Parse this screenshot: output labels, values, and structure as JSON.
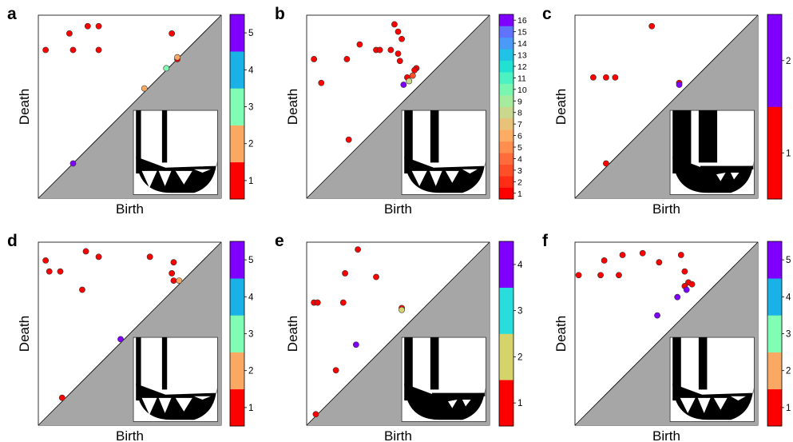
{
  "chart_data": [
    {
      "panel": "a",
      "type": "scatter",
      "xlabel": "Birth",
      "ylabel": "Death",
      "xlim": [
        0,
        1
      ],
      "ylim": [
        0,
        1
      ],
      "grid": false,
      "legend": "colorbar-right",
      "colorbar": {
        "ticks": [
          "1",
          "2",
          "3",
          "4",
          "5"
        ],
        "colors": [
          "#ff0000",
          "#f9a964",
          "#80ffb4",
          "#1ab2e6",
          "#8000ff"
        ]
      },
      "points": [
        {
          "x": 0.04,
          "y": 0.81,
          "c": 1
        },
        {
          "x": 0.17,
          "y": 0.9,
          "c": 1
        },
        {
          "x": 0.27,
          "y": 0.94,
          "c": 1
        },
        {
          "x": 0.33,
          "y": 0.94,
          "c": 1
        },
        {
          "x": 0.19,
          "y": 0.81,
          "c": 1
        },
        {
          "x": 0.33,
          "y": 0.81,
          "c": 1
        },
        {
          "x": 0.73,
          "y": 0.9,
          "c": 1
        },
        {
          "x": 0.76,
          "y": 0.76,
          "c": 1
        },
        {
          "x": 0.76,
          "y": 0.77,
          "c": 2
        },
        {
          "x": 0.7,
          "y": 0.71,
          "c": 3
        },
        {
          "x": 0.58,
          "y": 0.6,
          "c": 2
        },
        {
          "x": 0.19,
          "y": 0.19,
          "c": 5
        }
      ]
    },
    {
      "panel": "b",
      "type": "scatter",
      "xlabel": "Birth",
      "ylabel": "Death",
      "xlim": [
        0,
        1
      ],
      "ylim": [
        0,
        1
      ],
      "grid": false,
      "legend": "colorbar-right",
      "colorbar": {
        "ticks": [
          "1",
          "2",
          "3",
          "4",
          "5",
          "6",
          "7",
          "8",
          "9",
          "10",
          "11",
          "12",
          "13",
          "14",
          "15",
          "16"
        ],
        "colors": [
          "#ff0000",
          "#ff2c16",
          "#ff4f28",
          "#ff6b3b",
          "#ff8f4e",
          "#fdad63",
          "#e8c278",
          "#c8d88c",
          "#a5ec9e",
          "#7af6b0",
          "#4df2c2",
          "#22e0d2",
          "#20c2e6",
          "#4a9af6",
          "#5f73fc",
          "#8000ff"
        ]
      },
      "points": [
        {
          "x": 0.04,
          "y": 0.76,
          "c": 1
        },
        {
          "x": 0.08,
          "y": 0.63,
          "c": 1
        },
        {
          "x": 0.22,
          "y": 0.76,
          "c": 1
        },
        {
          "x": 0.29,
          "y": 0.84,
          "c": 1
        },
        {
          "x": 0.38,
          "y": 0.81,
          "c": 1
        },
        {
          "x": 0.4,
          "y": 0.81,
          "c": 1
        },
        {
          "x": 0.46,
          "y": 0.81,
          "c": 1
        },
        {
          "x": 0.48,
          "y": 0.95,
          "c": 1
        },
        {
          "x": 0.5,
          "y": 0.91,
          "c": 1
        },
        {
          "x": 0.52,
          "y": 0.87,
          "c": 1
        },
        {
          "x": 0.5,
          "y": 0.79,
          "c": 1
        },
        {
          "x": 0.51,
          "y": 0.75,
          "c": 1
        },
        {
          "x": 0.6,
          "y": 0.71,
          "c": 1
        },
        {
          "x": 0.59,
          "y": 0.7,
          "c": 1
        },
        {
          "x": 0.58,
          "y": 0.67,
          "c": 3
        },
        {
          "x": 0.55,
          "y": 0.66,
          "c": 1
        },
        {
          "x": 0.56,
          "y": 0.64,
          "c": 8
        },
        {
          "x": 0.53,
          "y": 0.62,
          "c": 16
        },
        {
          "x": 0.23,
          "y": 0.32,
          "c": 1
        }
      ]
    },
    {
      "panel": "c",
      "type": "scatter",
      "xlabel": "Birth",
      "ylabel": "Death",
      "xlim": [
        0,
        1
      ],
      "ylim": [
        0,
        1
      ],
      "grid": false,
      "legend": "colorbar-right",
      "colorbar": {
        "ticks": [
          "1",
          "2"
        ],
        "colors": [
          "#ff0000",
          "#8000ff"
        ]
      },
      "points": [
        {
          "x": 0.42,
          "y": 0.94,
          "c": 1
        },
        {
          "x": 0.1,
          "y": 0.66,
          "c": 1
        },
        {
          "x": 0.17,
          "y": 0.66,
          "c": 1
        },
        {
          "x": 0.22,
          "y": 0.66,
          "c": 1
        },
        {
          "x": 0.57,
          "y": 0.63,
          "c": 1
        },
        {
          "x": 0.57,
          "y": 0.62,
          "c": 2
        },
        {
          "x": 0.17,
          "y": 0.19,
          "c": 1
        }
      ]
    },
    {
      "panel": "d",
      "type": "scatter",
      "xlabel": "Birth",
      "ylabel": "Death",
      "xlim": [
        0,
        1
      ],
      "ylim": [
        0,
        1
      ],
      "grid": false,
      "legend": "colorbar-right",
      "colorbar": {
        "ticks": [
          "1",
          "2",
          "3",
          "4",
          "5"
        ],
        "colors": [
          "#ff0000",
          "#f9a964",
          "#80ffb4",
          "#1ab2e6",
          "#8000ff"
        ]
      },
      "points": [
        {
          "x": 0.04,
          "y": 0.9,
          "c": 1
        },
        {
          "x": 0.06,
          "y": 0.84,
          "c": 1
        },
        {
          "x": 0.12,
          "y": 0.84,
          "c": 1
        },
        {
          "x": 0.26,
          "y": 0.95,
          "c": 1
        },
        {
          "x": 0.33,
          "y": 0.92,
          "c": 1
        },
        {
          "x": 0.24,
          "y": 0.74,
          "c": 1
        },
        {
          "x": 0.61,
          "y": 0.92,
          "c": 1
        },
        {
          "x": 0.74,
          "y": 0.89,
          "c": 1
        },
        {
          "x": 0.73,
          "y": 0.83,
          "c": 1
        },
        {
          "x": 0.74,
          "y": 0.79,
          "c": 1
        },
        {
          "x": 0.77,
          "y": 0.79,
          "c": 2
        },
        {
          "x": 0.45,
          "y": 0.47,
          "c": 5
        },
        {
          "x": 0.13,
          "y": 0.15,
          "c": 1
        }
      ]
    },
    {
      "panel": "e",
      "type": "scatter",
      "xlabel": "Birth",
      "ylabel": "Death",
      "xlim": [
        0,
        1
      ],
      "ylim": [
        0,
        1
      ],
      "grid": false,
      "legend": "colorbar-right",
      "colorbar": {
        "ticks": [
          "1",
          "2",
          "3",
          "4"
        ],
        "colors": [
          "#ff0000",
          "#d4d46a",
          "#2adddd",
          "#8000ff"
        ]
      },
      "points": [
        {
          "x": 0.28,
          "y": 0.96,
          "c": 1
        },
        {
          "x": 0.21,
          "y": 0.83,
          "c": 1
        },
        {
          "x": 0.04,
          "y": 0.67,
          "c": 1
        },
        {
          "x": 0.06,
          "y": 0.67,
          "c": 1
        },
        {
          "x": 0.2,
          "y": 0.67,
          "c": 1
        },
        {
          "x": 0.38,
          "y": 0.81,
          "c": 1
        },
        {
          "x": 0.52,
          "y": 0.64,
          "c": 1
        },
        {
          "x": 0.52,
          "y": 0.63,
          "c": 2
        },
        {
          "x": 0.27,
          "y": 0.44,
          "c": 4
        },
        {
          "x": 0.16,
          "y": 0.3,
          "c": 1
        },
        {
          "x": 0.05,
          "y": 0.06,
          "c": 1
        }
      ]
    },
    {
      "panel": "f",
      "type": "scatter",
      "xlabel": "Birth",
      "ylabel": "Death",
      "xlim": [
        0,
        1
      ],
      "ylim": [
        0,
        1
      ],
      "grid": false,
      "legend": "colorbar-right",
      "colorbar": {
        "ticks": [
          "1",
          "2",
          "3",
          "4",
          "5"
        ],
        "colors": [
          "#ff0000",
          "#f9a964",
          "#80ffb4",
          "#1ab2e6",
          "#8000ff"
        ]
      },
      "points": [
        {
          "x": 0.02,
          "y": 0.82,
          "c": 1
        },
        {
          "x": 0.14,
          "y": 0.82,
          "c": 1
        },
        {
          "x": 0.16,
          "y": 0.9,
          "c": 1
        },
        {
          "x": 0.24,
          "y": 0.82,
          "c": 1
        },
        {
          "x": 0.26,
          "y": 0.93,
          "c": 1
        },
        {
          "x": 0.37,
          "y": 0.94,
          "c": 1
        },
        {
          "x": 0.46,
          "y": 0.89,
          "c": 1
        },
        {
          "x": 0.58,
          "y": 0.93,
          "c": 1
        },
        {
          "x": 0.6,
          "y": 0.84,
          "c": 1
        },
        {
          "x": 0.62,
          "y": 0.78,
          "c": 1
        },
        {
          "x": 0.64,
          "y": 0.77,
          "c": 1
        },
        {
          "x": 0.6,
          "y": 0.76,
          "c": 1
        },
        {
          "x": 0.61,
          "y": 0.74,
          "c": 5
        },
        {
          "x": 0.56,
          "y": 0.7,
          "c": 5
        },
        {
          "x": 0.45,
          "y": 0.6,
          "c": 5
        }
      ]
    }
  ],
  "panel_labels": [
    "a",
    "b",
    "c",
    "d",
    "e",
    "f"
  ],
  "colors": {
    "background": "#ffffff",
    "triangle": "#a6a6a6",
    "axis": "#000000"
  },
  "insets": {
    "a": "thin-arch",
    "b": "thick-curved",
    "c": "solid-block",
    "d": "thin-arch",
    "e": "solid-thick",
    "f": "medium-arch"
  }
}
